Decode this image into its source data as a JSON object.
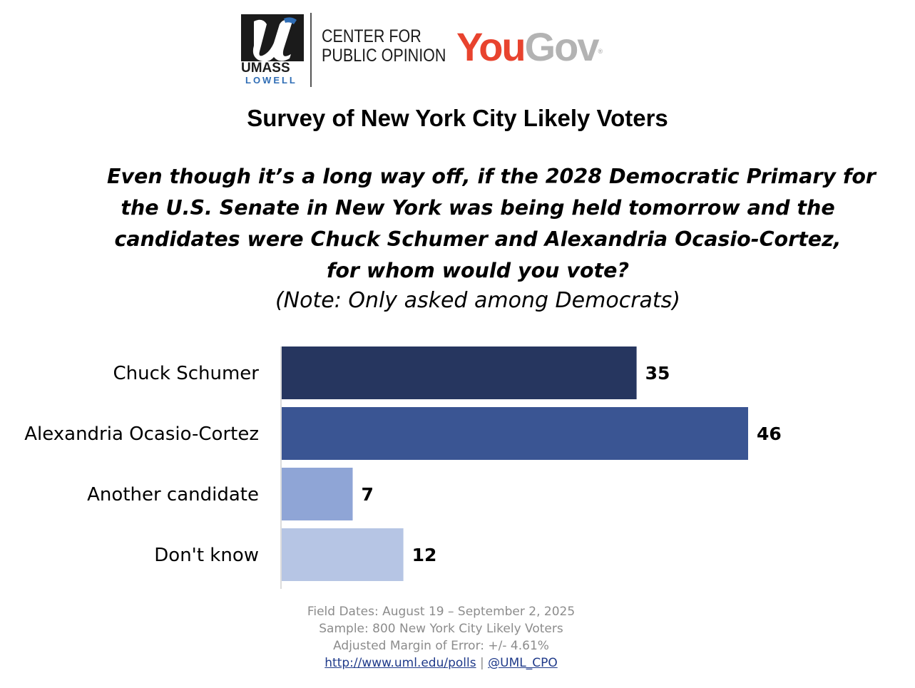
{
  "logo": {
    "umass": "UMASS",
    "lowell": "LOWELL",
    "center_line1": "CENTER FOR",
    "center_line2": "PUBLIC OPINION",
    "yougov_you": "You",
    "yougov_gov": "Gov",
    "yougov_reg": "®"
  },
  "title": "Survey of New York City Likely Voters",
  "question": {
    "lines": [
      "Even though it’s a long way off, if the 2028 Democratic Primary for",
      "the U.S. Senate in New York was being held tomorrow and the",
      "candidates were Chuck Schumer and Alexandria Ocasio-Cortez,",
      "for whom would you vote?"
    ],
    "note": "(Note: Only asked among Democrats)"
  },
  "chart_data": {
    "type": "bar",
    "orientation": "horizontal",
    "categories": [
      "Chuck Schumer",
      "Alexandria Ocasio-Cortez",
      "Another candidate",
      "Don't know"
    ],
    "values": [
      35,
      46,
      7,
      12
    ],
    "colors": [
      "#26365f",
      "#3a5593",
      "#8fa5d6",
      "#b6c5e4"
    ],
    "xlim": [
      0,
      50
    ],
    "title": "",
    "xlabel": "",
    "ylabel": "",
    "grid": false,
    "legend": "none"
  },
  "footer": {
    "field_dates": "Field Dates: August 19 – September 2, 2025",
    "sample": "Sample: 800 New York City Likely Voters",
    "moe": "Adjusted Margin of Error: +/- 4.61%",
    "link": "http://www.uml.edu/polls",
    "separator": "|",
    "handle": "@UML_CPO"
  },
  "colors": {
    "text": "#000000",
    "footer_text": "#8c8c8c",
    "link": "#1f3a8a",
    "yougov_red": "#e8432e",
    "yougov_gray": "#b3b3b3",
    "umass_blue": "#2f6db5"
  }
}
